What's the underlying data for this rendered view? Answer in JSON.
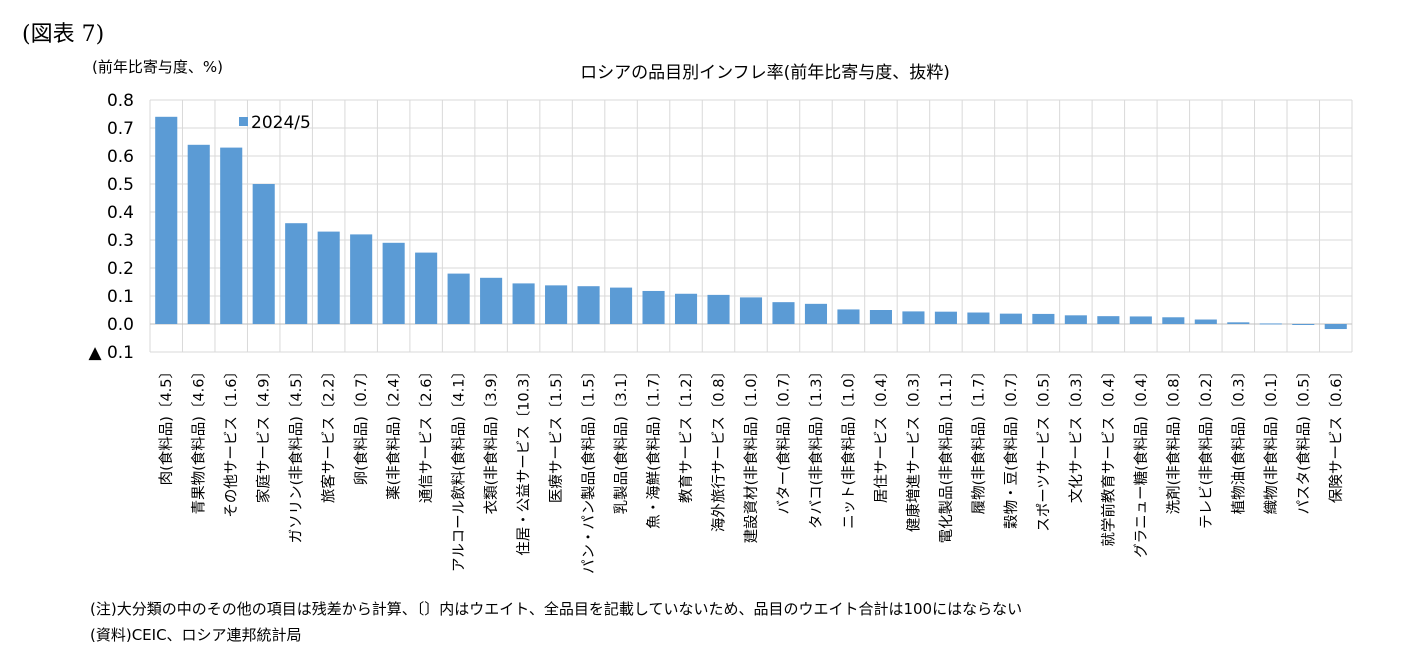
{
  "figure_label": "(図表 7)",
  "note": "(注)大分類の中のその他の項目は残差から計算、〔〕内はウエイト、全品目を記載していないため、品目のウエイト合計は100にはならない",
  "source": "(資料)CEIC、ロシア連邦統計局",
  "chart_data": {
    "type": "bar",
    "title": "ロシアの品目別インフレ率(前年比寄与度、抜粋)",
    "ylabel": "(前年比寄与度、%)",
    "xlabel": "",
    "ylim": [
      -0.1,
      0.8
    ],
    "yticks": [
      0.8,
      0.7,
      0.6,
      0.5,
      0.4,
      0.3,
      0.2,
      0.1,
      0.0,
      -0.1
    ],
    "ytick_labels": [
      "0.8",
      "0.7",
      "0.6",
      "0.5",
      "0.4",
      "0.3",
      "0.2",
      "0.1",
      "0.0",
      "▲ 0.1"
    ],
    "grid": true,
    "legend_position": "top-left",
    "bar_color": "#5b9bd5",
    "categories": [
      "肉(食料品)〔4.5〕",
      "青果物(食料品)〔4.6〕",
      "その他サービス〔1.6〕",
      "家庭サービス〔4.9〕",
      "ガソリン(非食料品)〔4.5〕",
      "旅客サービス〔2.2〕",
      "卵(食料品)〔0.7〕",
      "薬(非食料品)〔2.4〕",
      "通信サービス〔2.6〕",
      "アルコール飲料(食料品)〔4.1〕",
      "衣類(非食料品)〔3.9〕",
      "住居・公益サービス〔10.3〕",
      "医療サービス〔1.5〕",
      "パン・パン製品(食料品)〔1.5〕",
      "乳製品(食料品)〔3.1〕",
      "魚・海鮮(食料品)〔1.7〕",
      "教育サービス〔1.2〕",
      "海外旅行サービス〔0.8〕",
      "建設資材(非食料品)〔1.0〕",
      "バター(食料品)〔0.7〕",
      "タバコ(非食料品)〔1.3〕",
      "ニット(非食料品)〔1.0〕",
      "居住サービス〔0.4〕",
      "健康増進サービス〔0.3〕",
      "電化製品(非食料品)〔1.1〕",
      "履物(非食料品)〔1.7〕",
      "穀物・豆(食料品)〔0.7〕",
      "スポーツサービス〔0.5〕",
      "文化サービス〔0.3〕",
      "就学前教育サービス〔0.4〕",
      "グラニュー糖(食料品)〔0.4〕",
      "洗剤(非食料品)〔0.8〕",
      "テレビ(非食料品)〔0.2〕",
      "植物油(食料品)〔0.3〕",
      "織物(非食料品)〔0.1〕",
      "パスタ(食料品)〔0.5〕",
      "保険サービス〔0.6〕"
    ],
    "series": [
      {
        "name": "2024/5",
        "values": [
          0.74,
          0.64,
          0.63,
          0.5,
          0.36,
          0.33,
          0.32,
          0.29,
          0.255,
          0.18,
          0.165,
          0.145,
          0.138,
          0.135,
          0.13,
          0.118,
          0.108,
          0.104,
          0.095,
          0.078,
          0.072,
          0.052,
          0.05,
          0.045,
          0.044,
          0.041,
          0.037,
          0.036,
          0.031,
          0.028,
          0.027,
          0.024,
          0.016,
          0.006,
          0.002,
          -0.003,
          -0.018
        ]
      }
    ]
  }
}
